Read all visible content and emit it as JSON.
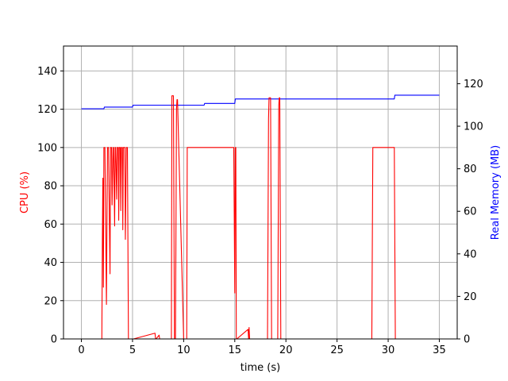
{
  "chart_data": {
    "type": "line",
    "title": "",
    "xlabel": "time (s)",
    "ylabel_left": "CPU (%)",
    "ylabel_right": "Real Memory (MB)",
    "xlim": [
      -1.75,
      36.75
    ],
    "ylim_left": [
      0,
      153
    ],
    "ylim_right": [
      0,
      137.7
    ],
    "x_ticks": [
      0,
      5,
      10,
      15,
      20,
      25,
      30,
      35
    ],
    "y_ticks_left": [
      0,
      20,
      40,
      60,
      80,
      100,
      120,
      140
    ],
    "y_ticks_right": [
      0,
      20,
      40,
      60,
      80,
      100,
      120
    ],
    "grid": true,
    "colors": {
      "cpu": "#ff0000",
      "memory": "#0000ff"
    },
    "series": [
      {
        "axis": "left",
        "color": "#ff0000",
        "x": [
          0,
          2.0,
          2.05,
          2.1,
          2.15,
          2.2,
          2.25,
          2.3,
          2.45,
          2.55,
          2.6,
          2.65,
          2.8,
          2.85,
          2.9,
          2.95,
          3.0,
          3.1,
          3.15,
          3.25,
          3.3,
          3.35,
          3.45,
          3.5,
          3.6,
          3.65,
          3.7,
          3.8,
          3.85,
          3.9,
          4.0,
          4.05,
          4.1,
          4.2,
          4.25,
          4.3,
          4.4,
          4.45,
          4.5,
          4.6,
          4.65,
          4.7,
          4.8,
          4.85,
          4.9,
          4.95,
          5.0,
          5.1,
          7.2,
          7.25,
          7.3,
          7.6,
          7.65,
          7.7,
          8.8,
          8.85,
          8.9,
          9.0,
          9.1,
          9.2,
          9.3,
          9.35,
          9.4,
          10.0,
          10.05,
          10.1,
          10.2,
          10.3,
          10.35,
          10.4,
          12.0,
          12.1,
          12.2,
          13.0,
          14.0,
          14.9,
          15.0,
          15.05,
          15.1,
          15.15,
          15.2,
          16.3,
          16.35,
          16.4,
          16.45,
          16.5,
          16.55,
          18.2,
          18.3,
          18.35,
          18.4,
          18.5,
          18.6,
          18.65,
          18.7,
          19.2,
          19.3,
          19.35,
          19.4,
          19.5,
          19.6,
          19.65,
          19.7,
          28.4,
          28.5,
          28.6,
          29.0,
          29.5,
          30.0,
          30.6,
          30.7,
          30.8,
          35.0
        ],
        "y": [
          0,
          0,
          52,
          84,
          27,
          100,
          100,
          100,
          18,
          100,
          100,
          100,
          34,
          100,
          100,
          100,
          70,
          100,
          100,
          59,
          100,
          100,
          73,
          100,
          100,
          62,
          100,
          100,
          67,
          100,
          100,
          57,
          100,
          100,
          100,
          52,
          100,
          100,
          100,
          0,
          0,
          0,
          0,
          0,
          0,
          0,
          0,
          0,
          3,
          0,
          0,
          2,
          0,
          0,
          0,
          127,
          127,
          127,
          0,
          0,
          120,
          125,
          125,
          0,
          0,
          0,
          0,
          0,
          100,
          100,
          100,
          100,
          100,
          100,
          100,
          100,
          24,
          100,
          100,
          0,
          0,
          5,
          0,
          6,
          0,
          0,
          0,
          0,
          115,
          126,
          126,
          126,
          0,
          0,
          0,
          0,
          122,
          126,
          126,
          0,
          0,
          0,
          0,
          0,
          100,
          100,
          100,
          100,
          100,
          100,
          0,
          0,
          0
        ]
      },
      {
        "axis": "right",
        "color": "#0000ff",
        "x": [
          0,
          2.2,
          2.25,
          5.0,
          5.05,
          12.0,
          12.05,
          15.0,
          15.05,
          30.6,
          30.65,
          35.0
        ],
        "y": [
          108.2,
          108.2,
          109.0,
          109.0,
          109.9,
          109.9,
          110.7,
          110.7,
          112.8,
          112.8,
          114.6,
          114.6
        ]
      }
    ]
  }
}
